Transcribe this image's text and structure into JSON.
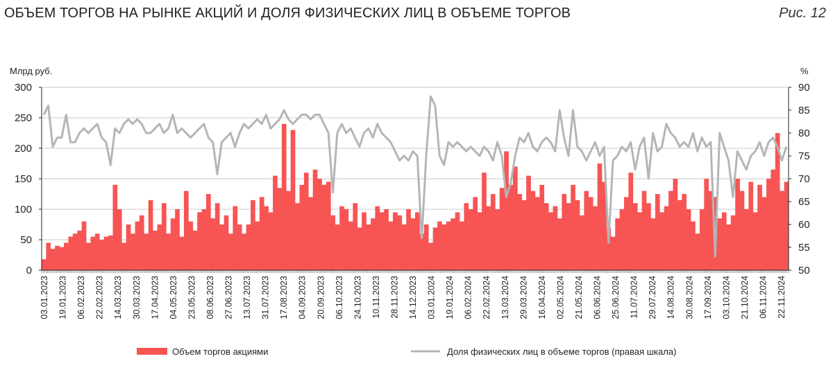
{
  "header": {
    "title": "ОБЪЕМ ТОРГОВ НА РЫНКЕ АКЦИЙ И ДОЛЯ ФИЗИЧЕСКИХ ЛИЦ В ОБЪЕМЕ ТОРГОВ",
    "figure_label": "Рис. 12"
  },
  "chart_data": {
    "type": "bar+line",
    "left_axis": {
      "label": "Млрд руб.",
      "range": [
        0,
        300
      ],
      "ticks": [
        0,
        50,
        100,
        150,
        200,
        250,
        300
      ]
    },
    "right_axis": {
      "label": "%",
      "range": [
        50,
        90
      ],
      "ticks": [
        50,
        55,
        60,
        65,
        70,
        75,
        80,
        85,
        90
      ]
    },
    "grid": true,
    "legend_position": "bottom",
    "x_tick_labels": [
      "03.01.2023",
      "19.01.2023",
      "06.02.2023",
      "22.02.2023",
      "14.03.2023",
      "30.03.2023",
      "17.04.2023",
      "04.05.2023",
      "23.05.2023",
      "08.06.2023",
      "27.06.2023",
      "13.07.2023",
      "31.07.2023",
      "17.08.2023",
      "04.09.2023",
      "20.09.2023",
      "06.10.2023",
      "24.10.2023",
      "10.11.2023",
      "28.11.2023",
      "14.12.2023",
      "03.01.2024",
      "19.01.2024",
      "06.02.2024",
      "22.02.2024",
      "13.03.2024",
      "29.03.2024",
      "16.04.2024",
      "02.05.2024",
      "21.05.2024",
      "06.06.2024",
      "25.06.2024",
      "11.07.2024",
      "29.07.2024",
      "14.08.2024",
      "30.08.2024",
      "17.09.2024",
      "03.10.2024",
      "21.10.2024",
      "06.11.2024",
      "22.11.2024"
    ],
    "series": [
      {
        "name": "Объем торгов акциями",
        "type": "bar",
        "axis": "left",
        "color": "#F75454",
        "values": [
          18,
          45,
          35,
          40,
          38,
          45,
          55,
          60,
          65,
          80,
          45,
          55,
          60,
          50,
          55,
          57,
          140,
          100,
          45,
          75,
          60,
          80,
          90,
          60,
          115,
          65,
          75,
          110,
          60,
          85,
          100,
          55,
          130,
          80,
          65,
          95,
          100,
          125,
          85,
          110,
          75,
          90,
          60,
          105,
          75,
          60,
          75,
          115,
          80,
          120,
          105,
          95,
          155,
          135,
          240,
          130,
          230,
          110,
          140,
          160,
          120,
          165,
          150,
          140,
          145,
          90,
          75,
          105,
          100,
          80,
          110,
          70,
          95,
          75,
          85,
          105,
          95,
          100,
          80,
          95,
          90,
          75,
          100,
          85,
          95,
          60,
          75,
          45,
          70,
          80,
          75,
          80,
          85,
          95,
          80,
          110,
          100,
          120,
          95,
          160,
          105,
          125,
          100,
          135,
          195,
          140,
          170,
          125,
          115,
          155,
          130,
          120,
          140,
          110,
          95,
          105,
          85,
          125,
          110,
          140,
          115,
          90,
          130,
          120,
          105,
          175,
          145,
          70,
          55,
          85,
          100,
          120,
          160,
          110,
          95,
          130,
          110,
          85,
          125,
          95,
          105,
          130,
          150,
          115,
          125,
          100,
          80,
          60,
          100,
          150,
          130,
          120,
          85,
          95,
          75,
          90,
          150,
          130,
          100,
          145,
          95,
          140,
          120,
          150,
          165,
          225,
          130,
          145
        ]
      },
      {
        "name": "Доля физических лиц в объеме торгов (правая шкала)",
        "type": "line",
        "axis": "right",
        "color": "#B3B5B7",
        "values": [
          84,
          86,
          77,
          79,
          79,
          84,
          78,
          78,
          80,
          81,
          80,
          81,
          82,
          79,
          78,
          73,
          81,
          80,
          82,
          83,
          82,
          83,
          82,
          80,
          80,
          81,
          82,
          80,
          81,
          84,
          80,
          81,
          80,
          79,
          80,
          81,
          82,
          79,
          78,
          71,
          78,
          79,
          80,
          77,
          80,
          82,
          81,
          82,
          83,
          82,
          84,
          81,
          82,
          83,
          85,
          83,
          82,
          83,
          84,
          84,
          83,
          84,
          84,
          82,
          80,
          67,
          80,
          82,
          80,
          81,
          79,
          77,
          80,
          81,
          79,
          82,
          80,
          79,
          78,
          76,
          74,
          75,
          74,
          76,
          75,
          57,
          75,
          88,
          86,
          75,
          73,
          78,
          77,
          78,
          77,
          76,
          77,
          76,
          75,
          77,
          76,
          74,
          78,
          75,
          66,
          69,
          75,
          79,
          78,
          80,
          77,
          76,
          78,
          79,
          78,
          76,
          85,
          79,
          75,
          85,
          77,
          76,
          74,
          76,
          78,
          75,
          77,
          56,
          74,
          75,
          77,
          76,
          78,
          72,
          77,
          79,
          70,
          80,
          76,
          77,
          82,
          80,
          79,
          77,
          78,
          77,
          80,
          76,
          79,
          77,
          78,
          53,
          80,
          77,
          74,
          66,
          76,
          74,
          72,
          75,
          76,
          78,
          75,
          78,
          79,
          77,
          74,
          77
        ]
      }
    ]
  }
}
